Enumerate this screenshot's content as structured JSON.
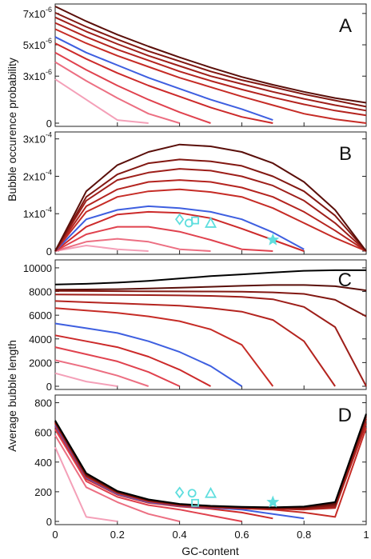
{
  "figure": {
    "ylabel_top": "Bubble occurence probability",
    "ylabel_bottom": "Average bubble length",
    "xlabel": "GC-content",
    "x_ticks": [
      "0",
      "0.2",
      "0.4",
      "0.6",
      "0.8",
      "1"
    ],
    "x_tick_values": [
      0,
      0.2,
      0.4,
      0.6,
      0.8,
      1
    ],
    "colors": [
      "#f4a0b8",
      "#ec6f82",
      "#e0424e",
      "#cc2a2a",
      "#3e5fe0",
      "#c62c26",
      "#b4241f",
      "#9e1f1a",
      "#821812",
      "#5a0f0a",
      "#000000"
    ],
    "marker_color": "#5fdede"
  },
  "chart_data": [
    {
      "panel": "A",
      "type": "line",
      "ylim": [
        0,
        7.4e-06
      ],
      "y_ticks": [
        {
          "value": 7e-06,
          "base": "7x10",
          "exp": "-6"
        },
        {
          "value": 5e-06,
          "base": "5x10",
          "exp": "-6"
        },
        {
          "value": 3e-06,
          "base": "3x10",
          "exp": "-6"
        },
        {
          "value": 0,
          "base": "0",
          "exp": ""
        }
      ],
      "x": [
        0,
        0.1,
        0.2,
        0.3,
        0.4,
        0.5,
        0.6,
        0.7,
        0.8,
        0.9,
        1.0
      ],
      "series": [
        {
          "values": [
            2.8e-06,
            1.5e-06,
            2e-07,
            0,
            null,
            null,
            null,
            null,
            null,
            null,
            null
          ]
        },
        {
          "values": [
            3.9e-06,
            2.7e-06,
            1.6e-06,
            6e-07,
            0,
            null,
            null,
            null,
            null,
            null,
            null
          ]
        },
        {
          "values": [
            4.5e-06,
            3.4e-06,
            2.4e-06,
            1.5e-06,
            7e-07,
            0,
            null,
            null,
            null,
            null,
            null
          ]
        },
        {
          "values": [
            5.1e-06,
            4.1e-06,
            3.2e-06,
            2.4e-06,
            1.7e-06,
            1e-06,
            4e-07,
            0,
            null,
            null,
            null
          ]
        },
        {
          "values": [
            5.5e-06,
            4.5e-06,
            3.7e-06,
            2.9e-06,
            2.2e-06,
            1.5e-06,
            9e-07,
            2e-07,
            null,
            null,
            null
          ]
        },
        {
          "values": [
            6e-06,
            5.1e-06,
            4.3e-06,
            3.6e-06,
            2.9e-06,
            2.3e-06,
            1.7e-06,
            1.15e-06,
            6e-07,
            2.5e-07,
            0
          ]
        },
        {
          "values": [
            6.4e-06,
            5.5e-06,
            4.7e-06,
            4e-06,
            3.3e-06,
            2.7e-06,
            2.15e-06,
            1.65e-06,
            1.2e-06,
            8e-07,
            5e-07
          ]
        },
        {
          "values": [
            6.75e-06,
            5.85e-06,
            5.05e-06,
            4.3e-06,
            3.65e-06,
            3e-06,
            2.5e-06,
            2e-06,
            1.55e-06,
            1.15e-06,
            8e-07
          ]
        },
        {
          "values": [
            7.05e-06,
            6.15e-06,
            5.35e-06,
            4.6e-06,
            3.95e-06,
            3.3e-06,
            2.75e-06,
            2.3e-06,
            1.85e-06,
            1.45e-06,
            1.05e-06
          ]
        },
        {
          "values": [
            7.45e-06,
            6.5e-06,
            5.65e-06,
            4.9e-06,
            4.2e-06,
            3.55e-06,
            2.95e-06,
            2.45e-06,
            2e-06,
            1.6e-06,
            1.3e-06
          ]
        }
      ]
    },
    {
      "panel": "B",
      "type": "line",
      "ylim": [
        0,
        0.00031
      ],
      "y_ticks": [
        {
          "value": 0.0003,
          "base": "3x10",
          "exp": "-4"
        },
        {
          "value": 0.0002,
          "base": "2x10",
          "exp": "-4"
        },
        {
          "value": 0.0001,
          "base": "1x10",
          "exp": "-4"
        },
        {
          "value": 0,
          "base": "0",
          "exp": ""
        }
      ],
      "x": [
        0,
        0.1,
        0.2,
        0.3,
        0.4,
        0.5,
        0.6,
        0.7,
        0.8,
        0.9,
        1.0
      ],
      "series": [
        {
          "values": [
            0,
            1.5e-05,
            5e-06,
            0,
            null,
            null,
            null,
            null,
            null,
            null,
            null
          ]
        },
        {
          "values": [
            0,
            2.5e-05,
            3.3e-05,
            2.5e-05,
            5e-06,
            0,
            null,
            null,
            null,
            null,
            null
          ]
        },
        {
          "values": [
            0,
            4.5e-05,
            6.5e-05,
            6.5e-05,
            5.2e-05,
            3e-05,
            5e-06,
            0,
            null,
            null,
            null
          ]
        },
        {
          "values": [
            0,
            6.5e-05,
            9.8e-05,
            0.000105,
            0.000102,
            8.8e-05,
            6e-05,
            3e-05,
            0,
            null,
            null
          ]
        },
        {
          "values": [
            0,
            8.5e-05,
            0.00011,
            0.00012,
            0.000115,
            0.000105,
            8.5e-05,
            5e-05,
            5e-06,
            null,
            null
          ]
        },
        {
          "values": [
            0,
            0.000105,
            0.000145,
            0.00016,
            0.000165,
            0.000158,
            0.000145,
            0.000115,
            7.5e-05,
            3.5e-05,
            0
          ]
        },
        {
          "values": [
            0,
            0.00012,
            0.000165,
            0.000185,
            0.00019,
            0.000185,
            0.00017,
            0.000145,
            0.000105,
            5.5e-05,
            0
          ]
        },
        {
          "values": [
            0,
            0.000135,
            0.00019,
            0.00021,
            0.00022,
            0.000215,
            0.0002,
            0.000175,
            0.000135,
            7.5e-05,
            0
          ]
        },
        {
          "values": [
            0,
            0.000145,
            0.000205,
            0.000235,
            0.000245,
            0.00024,
            0.000228,
            0.0002,
            0.00016,
            9.5e-05,
            0
          ]
        },
        {
          "values": [
            0,
            0.00016,
            0.00023,
            0.000265,
            0.000285,
            0.00028,
            0.000265,
            0.000235,
            0.000185,
            0.00011,
            0
          ]
        }
      ],
      "markers": [
        {
          "shape": "diamond",
          "x": 0.4,
          "y": 8.5e-05
        },
        {
          "shape": "circle",
          "x": 0.43,
          "y": 7.5e-05
        },
        {
          "shape": "square",
          "x": 0.45,
          "y": 8.2e-05
        },
        {
          "shape": "triangle",
          "x": 0.5,
          "y": 7.5e-05
        },
        {
          "shape": "star",
          "x": 0.7,
          "y": 3e-05
        }
      ]
    },
    {
      "panel": "C",
      "type": "line",
      "ylim": [
        0,
        10400
      ],
      "y_ticks": [
        {
          "value": 10000,
          "base": "10000",
          "exp": ""
        },
        {
          "value": 8000,
          "base": "8000",
          "exp": ""
        },
        {
          "value": 6000,
          "base": "6000",
          "exp": ""
        },
        {
          "value": 4000,
          "base": "4000",
          "exp": ""
        },
        {
          "value": 2000,
          "base": "2000",
          "exp": ""
        },
        {
          "value": 0,
          "base": "0",
          "exp": ""
        }
      ],
      "x": [
        0,
        0.1,
        0.2,
        0.3,
        0.4,
        0.5,
        0.6,
        0.7,
        0.8,
        0.9,
        1.0
      ],
      "series": [
        {
          "values": [
            1100,
            400,
            0,
            null,
            null,
            null,
            null,
            null,
            null,
            null,
            null
          ]
        },
        {
          "values": [
            2200,
            1600,
            900,
            0,
            null,
            null,
            null,
            null,
            null,
            null,
            null
          ]
        },
        {
          "values": [
            3300,
            2700,
            2100,
            1200,
            0,
            null,
            null,
            null,
            null,
            null,
            null
          ]
        },
        {
          "values": [
            4300,
            3800,
            3300,
            2500,
            1400,
            0,
            null,
            null,
            null,
            null,
            null
          ]
        },
        {
          "values": [
            5300,
            4900,
            4500,
            3800,
            2900,
            1700,
            0,
            null,
            null,
            null,
            null
          ]
        },
        {
          "values": [
            6600,
            6400,
            6200,
            5900,
            5500,
            4800,
            3500,
            0,
            null,
            null,
            null
          ]
        },
        {
          "values": [
            7200,
            7100,
            7000,
            6900,
            6800,
            6600,
            6300,
            5600,
            3800,
            0,
            null
          ]
        },
        {
          "values": [
            7750,
            7730,
            7720,
            7700,
            7670,
            7630,
            7550,
            7350,
            6700,
            5000,
            0
          ]
        },
        {
          "values": [
            8050,
            8040,
            8030,
            8020,
            8010,
            8000,
            7980,
            7930,
            7800,
            7300,
            5900
          ]
        },
        {
          "values": [
            8150,
            8170,
            8200,
            8250,
            8320,
            8400,
            8480,
            8550,
            8550,
            8450,
            8100
          ]
        },
        {
          "values": [
            8600,
            8650,
            8750,
            8900,
            9100,
            9300,
            9450,
            9600,
            9750,
            9800,
            9800
          ]
        }
      ]
    },
    {
      "panel": "D",
      "type": "line",
      "ylim": [
        0,
        830
      ],
      "y_ticks": [
        {
          "value": 800,
          "base": "800",
          "exp": ""
        },
        {
          "value": 600,
          "base": "600",
          "exp": ""
        },
        {
          "value": 400,
          "base": "400",
          "exp": ""
        },
        {
          "value": 200,
          "base": "200",
          "exp": ""
        },
        {
          "value": 0,
          "base": "0",
          "exp": ""
        }
      ],
      "x": [
        0,
        0.1,
        0.2,
        0.3,
        0.4,
        0.5,
        0.6,
        0.7,
        0.8,
        0.9,
        1.0
      ],
      "series": [
        {
          "values": [
            500,
            30,
            0,
            null,
            null,
            null,
            null,
            null,
            null,
            null,
            null
          ]
        },
        {
          "values": [
            580,
            230,
            130,
            50,
            0,
            null,
            null,
            null,
            null,
            null,
            null
          ]
        },
        {
          "values": [
            620,
            270,
            165,
            110,
            80,
            40,
            0,
            null,
            null,
            null,
            null
          ]
        },
        {
          "values": [
            640,
            285,
            180,
            125,
            100,
            85,
            60,
            20,
            null,
            null,
            null
          ]
        },
        {
          "values": [
            650,
            295,
            185,
            130,
            105,
            92,
            80,
            50,
            20,
            null,
            null
          ]
        },
        {
          "values": [
            660,
            300,
            190,
            135,
            108,
            95,
            88,
            80,
            60,
            30,
            630
          ]
        },
        {
          "values": [
            665,
            305,
            193,
            138,
            110,
            97,
            90,
            85,
            80,
            90,
            660
          ]
        },
        {
          "values": [
            668,
            308,
            196,
            140,
            112,
            99,
            92,
            88,
            85,
            100,
            690
          ]
        },
        {
          "values": [
            672,
            312,
            198,
            142,
            114,
            101,
            94,
            90,
            90,
            110,
            705
          ]
        },
        {
          "values": [
            675,
            318,
            200,
            145,
            116,
            103,
            96,
            92,
            95,
            120,
            715
          ]
        },
        {
          "values": [
            680,
            325,
            205,
            148,
            118,
            105,
            98,
            95,
            100,
            130,
            725
          ]
        }
      ],
      "markers": [
        {
          "shape": "diamond",
          "x": 0.4,
          "y": 195
        },
        {
          "shape": "circle",
          "x": 0.44,
          "y": 190
        },
        {
          "shape": "square",
          "x": 0.45,
          "y": 125
        },
        {
          "shape": "triangle",
          "x": 0.5,
          "y": 190
        },
        {
          "shape": "star",
          "x": 0.7,
          "y": 130
        }
      ]
    }
  ]
}
